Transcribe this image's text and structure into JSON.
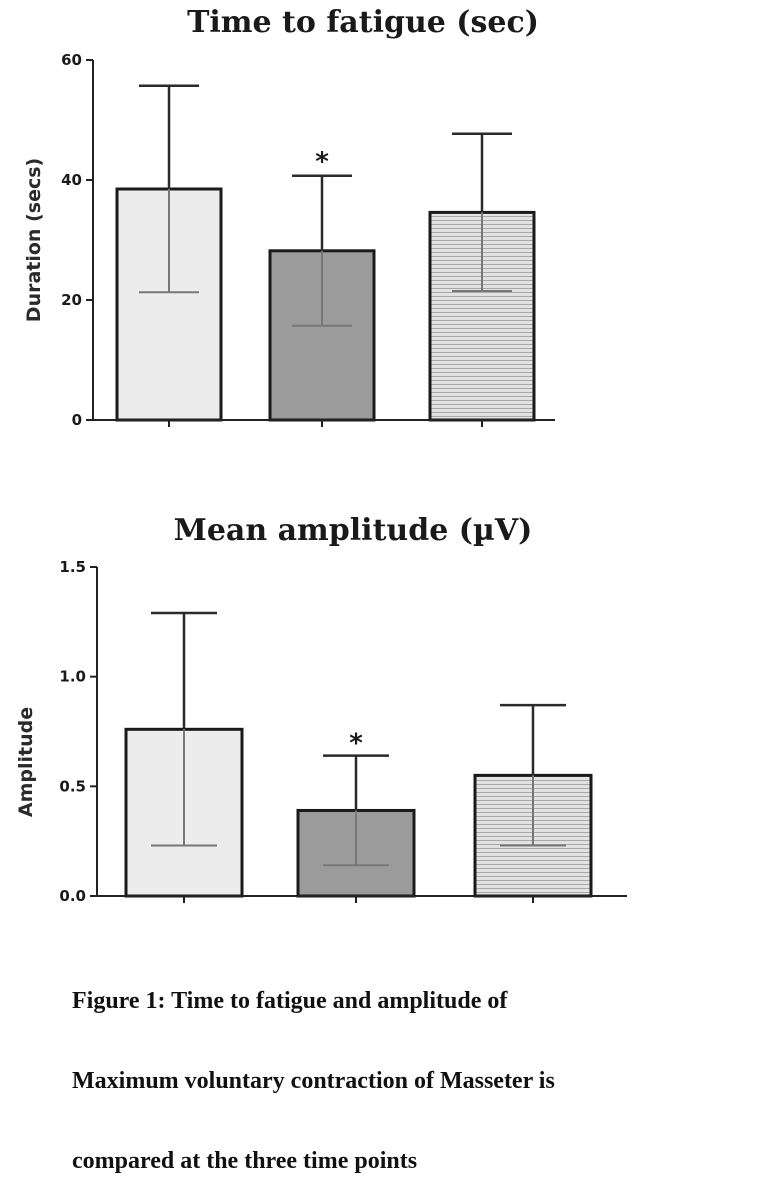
{
  "chart_data": [
    {
      "type": "bar",
      "title": "Time to fatigue (sec)",
      "ylabel": "Duration (secs)",
      "xlabel": "",
      "ylim": [
        0,
        60
      ],
      "yticks": [
        0,
        20,
        40,
        60
      ],
      "ytick_labels": [
        "0",
        "20",
        "40",
        "60"
      ],
      "categories": [
        "",
        "",
        ""
      ],
      "values": [
        38.5,
        28.2,
        34.6
      ],
      "errors": [
        17.2,
        12.5,
        13.1
      ],
      "significance": [
        "",
        "*",
        ""
      ],
      "bar_colors": [
        "#ececec",
        "#9b9b9b",
        "#dcdcdc"
      ],
      "bar_patterns": [
        "solid",
        "solid",
        "horizontal-lines"
      ],
      "grid": false
    },
    {
      "type": "bar",
      "title": "Mean amplitude (µV)",
      "ylabel": "Amplitude",
      "xlabel": "",
      "ylim": [
        0,
        1.5
      ],
      "yticks": [
        0,
        0.5,
        1.0,
        1.5
      ],
      "ytick_labels": [
        "0.0",
        "0.5",
        "1.0",
        "1.5"
      ],
      "categories": [
        "",
        "",
        ""
      ],
      "values": [
        0.76,
        0.39,
        0.55
      ],
      "errors": [
        0.53,
        0.25,
        0.32
      ],
      "significance": [
        "",
        "*",
        ""
      ],
      "bar_colors": [
        "#ececec",
        "#9b9b9b",
        "#dcdcdc"
      ],
      "bar_patterns": [
        "solid",
        "solid",
        "horizontal-lines"
      ],
      "grid": false
    }
  ],
  "caption": {
    "line1": "Figure 1: Time to fatigue and amplitude of",
    "line2": "Maximum voluntary contraction of Masseter is",
    "line3": "compared at the three time points"
  }
}
